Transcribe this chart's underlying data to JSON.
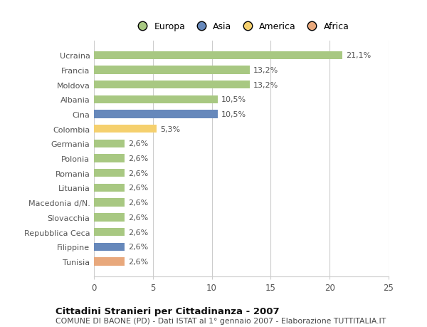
{
  "categories": [
    "Ucraina",
    "Francia",
    "Moldova",
    "Albania",
    "Cina",
    "Colombia",
    "Germania",
    "Polonia",
    "Romania",
    "Lituania",
    "Macedonia d/N.",
    "Slovacchia",
    "Repubblica Ceca",
    "Filippine",
    "Tunisia"
  ],
  "values": [
    21.1,
    13.2,
    13.2,
    10.5,
    10.5,
    5.3,
    2.6,
    2.6,
    2.6,
    2.6,
    2.6,
    2.6,
    2.6,
    2.6,
    2.6
  ],
  "labels": [
    "21,1%",
    "13,2%",
    "13,2%",
    "10,5%",
    "10,5%",
    "5,3%",
    "2,6%",
    "2,6%",
    "2,6%",
    "2,6%",
    "2,6%",
    "2,6%",
    "2,6%",
    "2,6%",
    "2,6%"
  ],
  "colors": [
    "#a8c882",
    "#a8c882",
    "#a8c882",
    "#a8c882",
    "#6688bb",
    "#f5d06e",
    "#a8c882",
    "#a8c882",
    "#a8c882",
    "#a8c882",
    "#a8c882",
    "#a8c882",
    "#a8c882",
    "#6688bb",
    "#e8a87c"
  ],
  "legend_labels": [
    "Europa",
    "Asia",
    "America",
    "Africa"
  ],
  "legend_colors": [
    "#a8c882",
    "#6688bb",
    "#f5d06e",
    "#e8a87c"
  ],
  "title": "Cittadini Stranieri per Cittadinanza - 2007",
  "subtitle": "COMUNE DI BAONE (PD) - Dati ISTAT al 1° gennaio 2007 - Elaborazione TUTTITALIA.IT",
  "xlim": [
    0,
    25
  ],
  "xticks": [
    0,
    5,
    10,
    15,
    20,
    25
  ],
  "background_color": "#ffffff",
  "bar_height": 0.55,
  "grid_color": "#cccccc",
  "label_color": "#555555",
  "title_fontsize": 9.5,
  "subtitle_fontsize": 7.8,
  "bar_label_fontsize": 8,
  "ytick_fontsize": 8,
  "xtick_fontsize": 8.5
}
